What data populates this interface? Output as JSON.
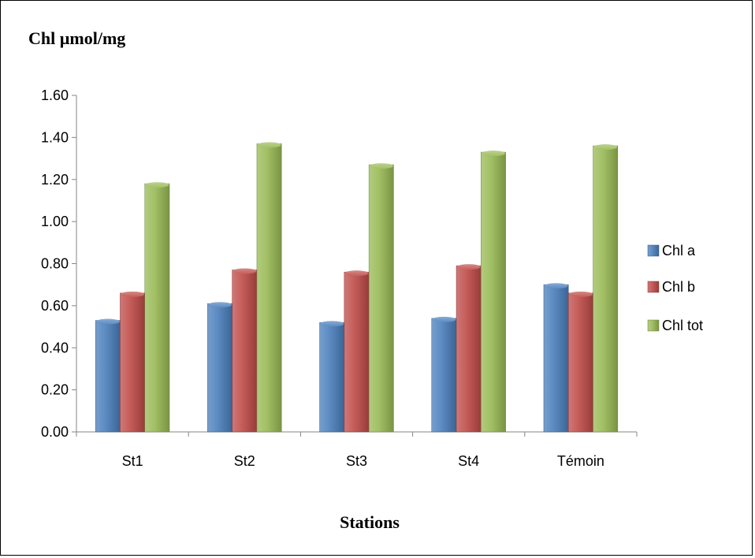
{
  "chart_data": {
    "type": "bar",
    "ylabel": "Chl µmol/mg",
    "xlabel": "Stations",
    "categories": [
      "St1",
      "St2",
      "St3",
      "St4",
      "Témoin"
    ],
    "series": [
      {
        "name": "Chl a",
        "values": [
          0.53,
          0.61,
          0.52,
          0.54,
          0.7
        ],
        "color": "#4a7ebb"
      },
      {
        "name": "Chl b",
        "values": [
          0.66,
          0.77,
          0.76,
          0.79,
          0.66
        ],
        "color": "#be4b48"
      },
      {
        "name": "Chl tot",
        "values": [
          1.18,
          1.37,
          1.27,
          1.33,
          1.36
        ],
        "color": "#98b954"
      }
    ],
    "ylim": [
      0,
      1.6
    ],
    "yticks": [
      "0.00",
      "0.20",
      "0.40",
      "0.60",
      "0.80",
      "1.00",
      "1.20",
      "1.40",
      "1.60"
    ],
    "grid": false,
    "legend": "right"
  }
}
